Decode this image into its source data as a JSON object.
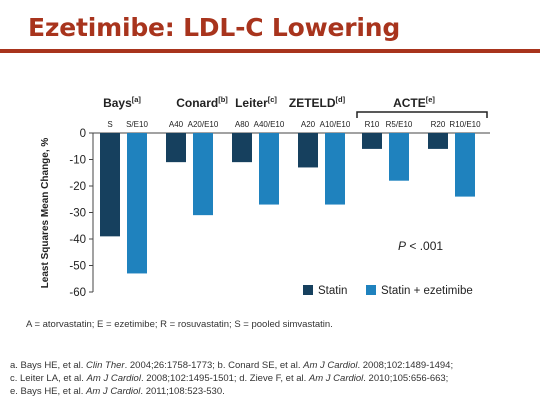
{
  "title": "Ezetimibe: LDL-C Lowering",
  "chart_data": {
    "type": "bar",
    "ylabel": "Least Squares Mean Change, %",
    "ylim": [
      -60,
      0
    ],
    "yticks": [
      0,
      -10,
      -20,
      -30,
      -40,
      -50,
      -60
    ],
    "grid": false,
    "legend_position": "bottom-right",
    "annotation": "P < .001",
    "colors": {
      "Statin": "#16405e",
      "Statin + ezetimibe": "#1f82be"
    },
    "series": [
      {
        "name": "Statin"
      },
      {
        "name": "Statin + ezetimibe"
      }
    ],
    "studies": [
      {
        "name": "Bays",
        "sup": "[a]",
        "pairs": [
          {
            "stat_label": "S",
            "stat": -39,
            "combo_label": "S/E10",
            "combo": -53
          }
        ]
      },
      {
        "name": "Conard",
        "sup": "[b]",
        "pairs": [
          {
            "stat_label": "A40",
            "stat": -11,
            "combo_label": "A20/E10",
            "combo": -31
          }
        ]
      },
      {
        "name": "Leiter",
        "sup": "[c]",
        "pairs": [
          {
            "stat_label": "A80",
            "stat": -11,
            "combo_label": "A40/E10",
            "combo": -27
          }
        ]
      },
      {
        "name": "ZETELD",
        "sup": "[d]",
        "pairs": [
          {
            "stat_label": "A20",
            "stat": -13,
            "combo_label": "A10/E10",
            "combo": -27
          }
        ]
      },
      {
        "name": "ACTE",
        "sup": "[e]",
        "pairs": [
          {
            "stat_label": "R10",
            "stat": -6,
            "combo_label": "R5/E10",
            "combo": -18
          },
          {
            "stat_label": "R20",
            "stat": -6,
            "combo_label": "R10/E10",
            "combo": -24
          }
        ]
      }
    ]
  },
  "abbreviations": "A = atorvastatin; E = ezetimibe; R = rosuvastatin; S = pooled simvastatin.",
  "references": [
    [
      {
        "t": "a. Bays HE, et al. "
      },
      {
        "t": "Clin Ther",
        "i": true
      },
      {
        "t": ". 2004;26:1758-1773; b. Conard SE, et al. "
      },
      {
        "t": "Am J Cardiol",
        "i": true
      },
      {
        "t": ". 2008;102:1489-1494;"
      }
    ],
    [
      {
        "t": "c. Leiter LA, et al. "
      },
      {
        "t": "Am J Cardiol",
        "i": true
      },
      {
        "t": ". 2008;102:1495-1501; d. Zieve F, et al. "
      },
      {
        "t": "Am J Cardiol",
        "i": true
      },
      {
        "t": ". 2010;105:656-663;"
      }
    ],
    [
      {
        "t": "e. Bays HE, et al. "
      },
      {
        "t": "Am J Cardiol",
        "i": true
      },
      {
        "t": ". 2011;108:523-530."
      }
    ]
  ]
}
